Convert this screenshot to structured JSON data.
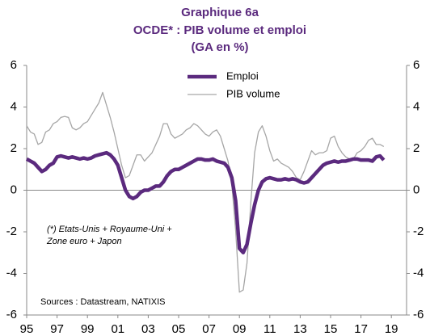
{
  "chart_data": {
    "type": "line",
    "title": [
      "Graphique 6a",
      "OCDE* : PIB volume et emploi",
      "(GA en %)"
    ],
    "annotations": [
      "(*) Etats-Unis + Royaume-Uni +",
      "Zone euro + Japon"
    ],
    "source": "Sources : Datastream, NATIXIS",
    "legend": "upper center",
    "x": [
      1995,
      1995.25,
      1995.5,
      1995.75,
      1996,
      1996.25,
      1996.5,
      1996.75,
      1997,
      1997.25,
      1997.5,
      1997.75,
      1998,
      1998.25,
      1998.5,
      1998.75,
      1999,
      1999.25,
      1999.5,
      1999.75,
      2000,
      2000.25,
      2000.5,
      2000.75,
      2001,
      2001.25,
      2001.5,
      2001.75,
      2002,
      2002.25,
      2002.5,
      2002.75,
      2003,
      2003.25,
      2003.5,
      2003.75,
      2004,
      2004.25,
      2004.5,
      2004.75,
      2005,
      2005.25,
      2005.5,
      2005.75,
      2006,
      2006.25,
      2006.5,
      2006.75,
      2007,
      2007.25,
      2007.5,
      2007.75,
      2008,
      2008.25,
      2008.5,
      2008.75,
      2009,
      2009.25,
      2009.5,
      2009.75,
      2010,
      2010.25,
      2010.5,
      2010.75,
      2011,
      2011.25,
      2011.5,
      2011.75,
      2012,
      2012.25,
      2012.5,
      2012.75,
      2013,
      2013.25,
      2013.5,
      2013.75,
      2014,
      2014.25,
      2014.5,
      2014.75,
      2015,
      2015.25,
      2015.5,
      2015.75,
      2016,
      2016.25,
      2016.5,
      2016.75,
      2017,
      2017.25,
      2017.5,
      2017.75,
      2018,
      2018.25,
      2018.5
    ],
    "series": [
      {
        "name": "Emploi",
        "color": "#5b2a7e",
        "width": 4.5,
        "values": [
          1.5,
          1.4,
          1.3,
          1.1,
          0.9,
          1.0,
          1.2,
          1.3,
          1.6,
          1.65,
          1.6,
          1.55,
          1.6,
          1.55,
          1.5,
          1.55,
          1.5,
          1.55,
          1.65,
          1.7,
          1.75,
          1.8,
          1.7,
          1.5,
          1.2,
          0.6,
          0.0,
          -0.3,
          -0.4,
          -0.3,
          -0.1,
          0.0,
          0.0,
          0.1,
          0.2,
          0.2,
          0.4,
          0.7,
          0.9,
          1.0,
          1.0,
          1.1,
          1.2,
          1.3,
          1.4,
          1.5,
          1.5,
          1.45,
          1.45,
          1.5,
          1.4,
          1.35,
          1.3,
          1.1,
          0.6,
          -0.5,
          -2.8,
          -3.0,
          -2.6,
          -1.6,
          -0.7,
          0.0,
          0.4,
          0.55,
          0.6,
          0.55,
          0.5,
          0.5,
          0.55,
          0.5,
          0.55,
          0.5,
          0.4,
          0.35,
          0.4,
          0.6,
          0.8,
          1.0,
          1.2,
          1.3,
          1.35,
          1.4,
          1.35,
          1.4,
          1.4,
          1.45,
          1.5,
          1.5,
          1.45,
          1.45,
          1.45,
          1.4,
          1.6,
          1.65,
          1.45
        ]
      },
      {
        "name": "PIB volume",
        "color": "#a6a6a6",
        "width": 1.3,
        "values": [
          3.1,
          2.8,
          2.7,
          2.2,
          2.3,
          2.8,
          2.9,
          3.2,
          3.3,
          3.5,
          3.55,
          3.5,
          3.0,
          2.9,
          3.0,
          3.2,
          3.3,
          3.6,
          3.9,
          4.2,
          4.7,
          4.1,
          3.5,
          2.8,
          2.0,
          1.2,
          0.6,
          0.7,
          1.2,
          1.7,
          1.7,
          1.4,
          1.6,
          1.8,
          2.2,
          2.6,
          3.2,
          3.2,
          2.7,
          2.5,
          2.6,
          2.7,
          2.9,
          3.0,
          3.2,
          3.1,
          2.9,
          2.7,
          2.6,
          2.8,
          2.9,
          2.6,
          2.0,
          1.4,
          0.3,
          -1.9,
          -4.9,
          -4.8,
          -3.5,
          -0.6,
          1.8,
          2.8,
          3.1,
          2.6,
          1.9,
          1.4,
          1.5,
          1.3,
          1.2,
          1.1,
          0.9,
          0.6,
          0.5,
          0.9,
          1.4,
          1.9,
          1.7,
          1.8,
          1.8,
          1.9,
          2.5,
          2.6,
          2.1,
          1.8,
          1.6,
          1.5,
          1.5,
          1.8,
          1.9,
          2.1,
          2.4,
          2.5,
          2.2,
          2.2,
          2.1
        ]
      }
    ],
    "xlim": [
      1995,
      2020
    ],
    "xticks": [
      {
        "value": 1995,
        "label": "95"
      },
      {
        "value": 1997,
        "label": "97"
      },
      {
        "value": 1999,
        "label": "99"
      },
      {
        "value": 2001,
        "label": "01"
      },
      {
        "value": 2003,
        "label": "03"
      },
      {
        "value": 2005,
        "label": "05"
      },
      {
        "value": 2007,
        "label": "07"
      },
      {
        "value": 2009,
        "label": "09"
      },
      {
        "value": 2011,
        "label": "11"
      },
      {
        "value": 2013,
        "label": "13"
      },
      {
        "value": 2015,
        "label": "15"
      },
      {
        "value": 2017,
        "label": "17"
      },
      {
        "value": 2019,
        "label": "19"
      }
    ],
    "ylim": [
      -6,
      6
    ],
    "yticks": [
      -6,
      -4,
      -2,
      0,
      2,
      4,
      6
    ],
    "y2lim": [
      -6,
      6
    ],
    "y2ticks": [
      -6,
      -4,
      -2,
      0,
      2,
      4,
      6
    ]
  }
}
